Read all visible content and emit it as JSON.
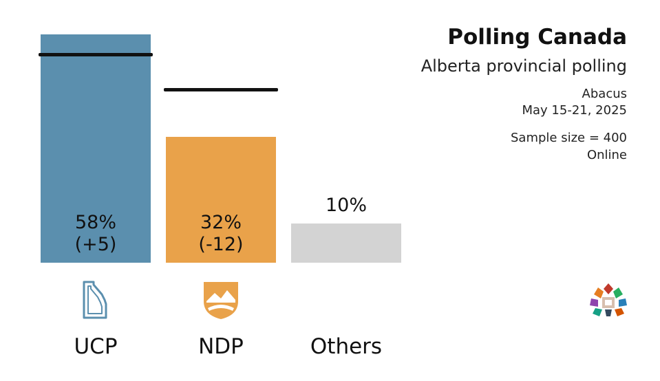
{
  "header": {
    "title": "Polling Canada",
    "subtitle": "Alberta provincial polling",
    "pollster": "Abacus",
    "dates": "May 15-21, 2025",
    "sample": "Sample size = 400",
    "mode": "Online"
  },
  "chart_data": {
    "type": "bar",
    "categories": [
      "UCP",
      "NDP",
      "Others"
    ],
    "values": [
      58,
      32,
      10
    ],
    "previous_values": [
      53,
      44,
      null
    ],
    "value_labels": [
      "58%",
      "32%",
      "10%"
    ],
    "change_labels": [
      "(+5)",
      "(-12)",
      ""
    ],
    "colors": [
      "#5b8fae",
      "#e9a24a",
      "#d3d3d3"
    ],
    "ylim": [
      0,
      58
    ],
    "grid": false,
    "legend": "none",
    "party_icons": [
      "alberta-outline-icon",
      "mountain-shield-icon",
      ""
    ]
  }
}
